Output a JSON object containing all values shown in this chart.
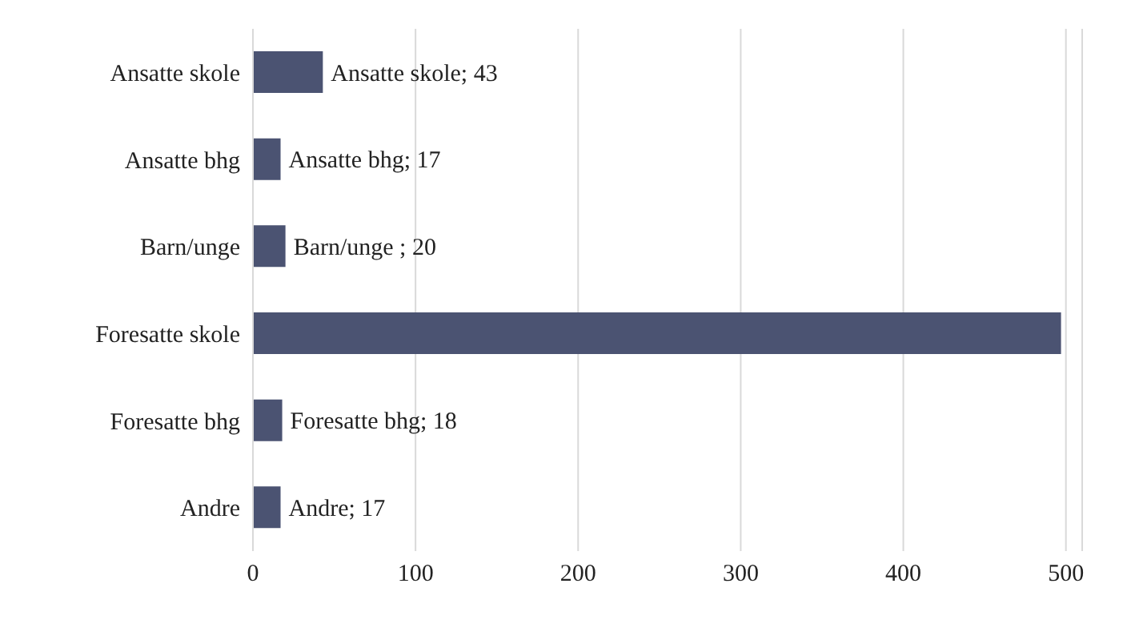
{
  "chart_data": {
    "type": "bar",
    "orientation": "horizontal",
    "categories": [
      "Ansatte skole",
      "Ansatte bhg",
      "Barn/unge",
      "Foresatte skole",
      "Foresatte bhg",
      "Andre"
    ],
    "values": [
      43,
      17,
      20,
      497,
      18,
      17
    ],
    "value_labels": [
      "Ansatte skole; 43",
      "Ansatte bhg; 17",
      "Barn/unge ; 20",
      null,
      "Foresatte bhg; 18",
      "Andre; 17"
    ],
    "color": "#4b5372",
    "xlim": [
      0,
      510
    ],
    "xticks": [
      0,
      100,
      200,
      300,
      400,
      500
    ],
    "grid": "x"
  }
}
